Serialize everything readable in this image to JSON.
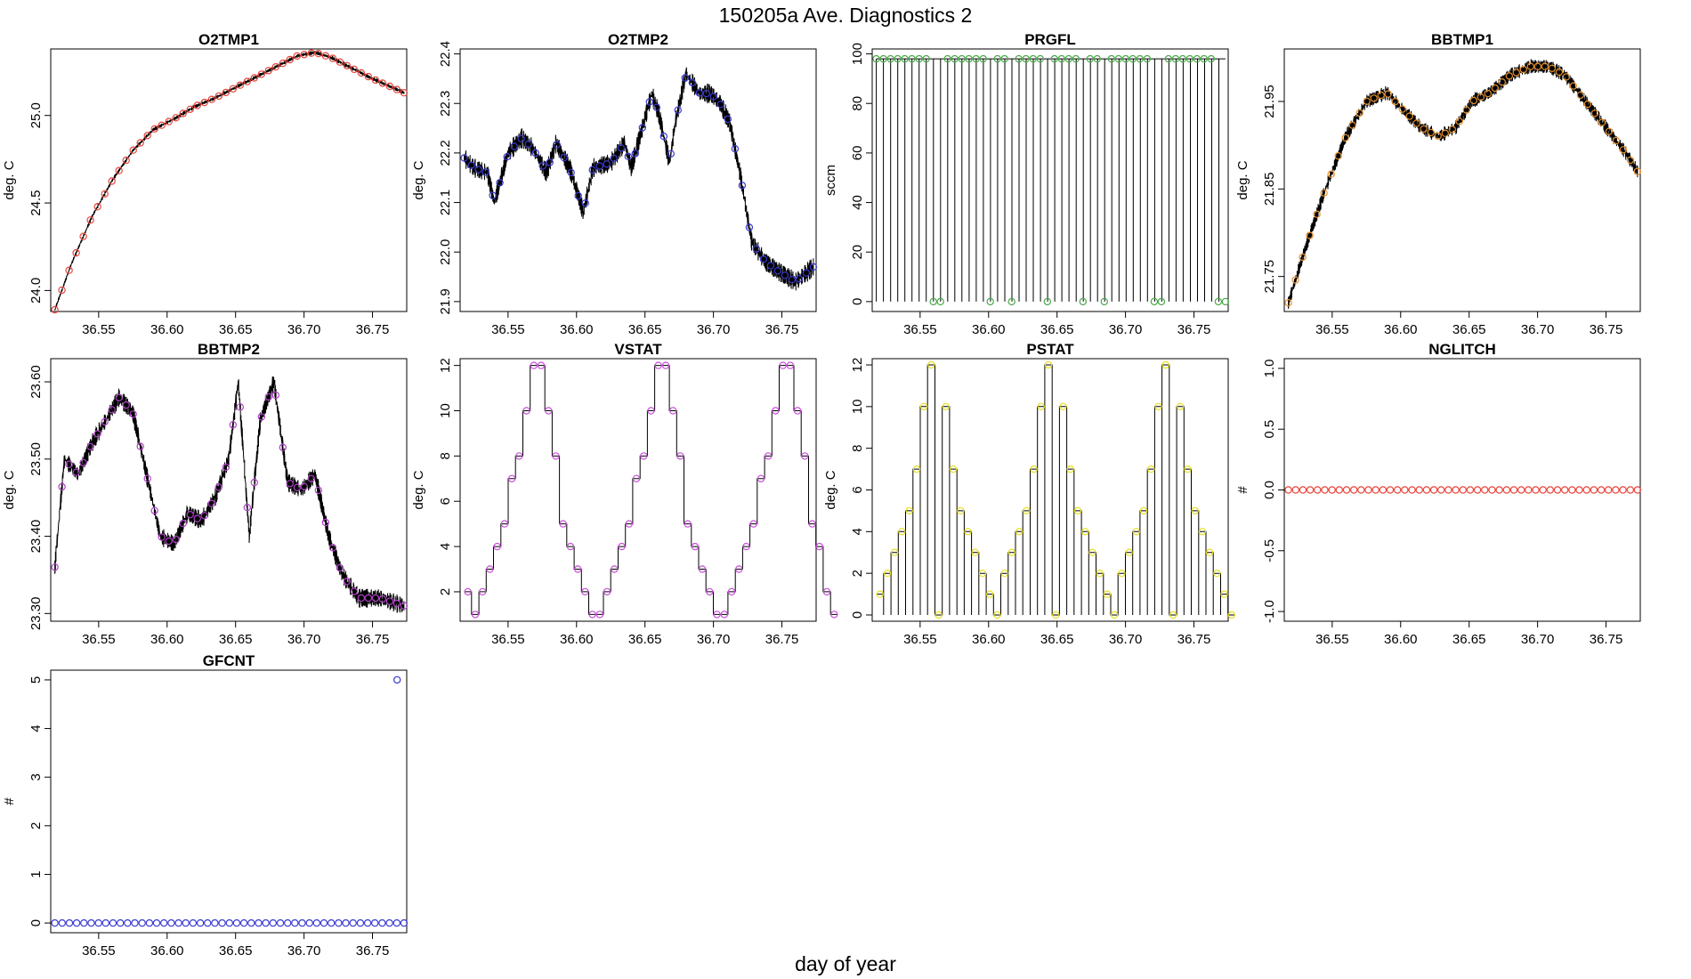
{
  "figure": {
    "title": "150205a   Ave. Diagnostics 2",
    "xlabel": "day of year"
  },
  "chart_data": [
    {
      "type": "line",
      "title": "O2TMP1",
      "ylabel": "deg. C",
      "xlim": [
        36.515,
        36.775
      ],
      "ylim": [
        23.88,
        25.38
      ],
      "xticks": [
        "36.55",
        "36.60",
        "36.65",
        "36.70",
        "36.75"
      ],
      "yticks": [
        "24.0",
        "24.5",
        "25.0"
      ],
      "marker_color": "#e8453c",
      "style": "line",
      "x": [
        36.518,
        36.53,
        36.545,
        36.56,
        36.575,
        36.59,
        36.605,
        36.62,
        36.635,
        36.65,
        36.665,
        36.68,
        36.695,
        36.708,
        36.72,
        36.735,
        36.75,
        36.773
      ],
      "y": [
        23.89,
        24.15,
        24.42,
        24.63,
        24.8,
        24.92,
        24.98,
        25.05,
        25.1,
        25.16,
        25.22,
        25.28,
        25.34,
        25.36,
        25.33,
        25.27,
        25.21,
        25.13
      ],
      "noise": 0.01
    },
    {
      "type": "line",
      "title": "O2TMP2",
      "ylabel": "deg. C",
      "xlim": [
        36.515,
        36.775
      ],
      "ylim": [
        21.88,
        22.41
      ],
      "xticks": [
        "36.55",
        "36.60",
        "36.65",
        "36.70",
        "36.75"
      ],
      "yticks": [
        "21.9",
        "22.0",
        "22.1",
        "22.2",
        "22.3",
        "22.4"
      ],
      "marker_color": "#3a3ad0",
      "style": "line",
      "x": [
        36.518,
        36.525,
        36.535,
        36.54,
        36.55,
        36.56,
        36.568,
        36.578,
        36.585,
        36.595,
        36.605,
        36.612,
        36.625,
        36.635,
        36.64,
        36.65,
        36.655,
        36.66,
        36.668,
        36.672,
        36.68,
        36.69,
        36.698,
        36.705,
        36.712,
        36.72,
        36.728,
        36.738,
        36.748,
        36.76,
        36.773
      ],
      "y": [
        22.19,
        22.17,
        22.16,
        22.1,
        22.2,
        22.23,
        22.21,
        22.16,
        22.22,
        22.17,
        22.08,
        22.17,
        22.18,
        22.22,
        22.17,
        22.27,
        22.32,
        22.28,
        22.18,
        22.26,
        22.36,
        22.32,
        22.32,
        22.3,
        22.26,
        22.15,
        22.02,
        21.98,
        21.96,
        21.94,
        21.97
      ],
      "noise": 0.02
    },
    {
      "type": "line",
      "title": "PRGFL",
      "ylabel": "sccm",
      "xlim": [
        36.515,
        36.775
      ],
      "ylim": [
        -4,
        102
      ],
      "xticks": [
        "36.55",
        "36.60",
        "36.65",
        "36.70",
        "36.75"
      ],
      "yticks": [
        "0",
        "20",
        "40",
        "60",
        "80",
        "100"
      ],
      "marker_color": "#4aa84a",
      "style": "binary",
      "period": 0.0417,
      "x_start": 36.518,
      "x_end": 36.773,
      "high": 98,
      "low": 0,
      "spikes_per_period": 8
    },
    {
      "type": "line",
      "title": "BBTMP1",
      "ylabel": "deg. C",
      "xlim": [
        36.515,
        36.775
      ],
      "ylim": [
        21.71,
        22.01
      ],
      "xticks": [
        "36.55",
        "36.60",
        "36.65",
        "36.70",
        "36.75"
      ],
      "yticks": [
        "21.75",
        "21.85",
        "21.95"
      ],
      "marker_color": "#e8902a",
      "style": "line",
      "x": [
        36.518,
        36.53,
        36.545,
        36.56,
        36.575,
        36.59,
        36.602,
        36.615,
        36.628,
        36.64,
        36.652,
        36.665,
        36.68,
        36.695,
        36.708,
        36.72,
        36.735,
        36.75,
        36.765,
        36.773
      ],
      "y": [
        21.72,
        21.78,
        21.85,
        21.91,
        21.95,
        21.96,
        21.94,
        21.92,
        21.91,
        21.92,
        21.95,
        21.96,
        21.98,
        21.99,
        21.99,
        21.98,
        21.95,
        21.92,
        21.89,
        21.87
      ],
      "noise": 0.008
    },
    {
      "type": "line",
      "title": "BBTMP2",
      "ylabel": "deg. C",
      "xlim": [
        36.515,
        36.775
      ],
      "ylim": [
        23.29,
        23.63
      ],
      "xticks": [
        "36.55",
        "36.60",
        "36.65",
        "36.70",
        "36.75"
      ],
      "yticks": [
        "23.30",
        "23.40",
        "23.50",
        "23.60"
      ],
      "marker_color": "#b040c8",
      "style": "line",
      "x": [
        36.518,
        36.525,
        36.535,
        36.545,
        36.555,
        36.565,
        36.575,
        36.585,
        36.595,
        36.605,
        36.615,
        36.625,
        36.635,
        36.645,
        36.652,
        36.66,
        36.668,
        36.678,
        36.688,
        36.698,
        36.708,
        36.718,
        36.728,
        36.74,
        36.755,
        36.773
      ],
      "y": [
        23.36,
        23.5,
        23.48,
        23.52,
        23.55,
        23.58,
        23.56,
        23.48,
        23.4,
        23.39,
        23.43,
        23.42,
        23.45,
        23.5,
        23.6,
        23.4,
        23.55,
        23.6,
        23.47,
        23.46,
        23.48,
        23.4,
        23.35,
        23.32,
        23.32,
        23.31
      ],
      "noise": 0.012
    },
    {
      "type": "line",
      "title": "VSTAT",
      "ylabel": "deg. C",
      "xlim": [
        36.515,
        36.775
      ],
      "ylim": [
        0.7,
        12.3
      ],
      "xticks": [
        "36.55",
        "36.60",
        "36.65",
        "36.70",
        "36.75"
      ],
      "yticks": [
        "2",
        "4",
        "6",
        "8",
        "10",
        "12"
      ],
      "marker_color": "#c850d8",
      "style": "step",
      "x_start": 36.518,
      "step": 0.00535,
      "values": [
        2,
        1,
        2,
        3,
        4,
        5,
        7,
        8,
        10,
        12,
        12,
        10,
        8,
        5,
        4,
        3,
        2,
        1,
        1,
        2,
        3,
        4,
        5,
        7,
        8,
        10,
        12,
        12,
        10,
        8,
        5,
        4,
        3,
        2,
        1,
        1,
        2,
        3,
        4,
        5,
        7,
        8,
        10,
        12,
        12,
        10,
        8,
        5,
        4,
        2,
        1
      ]
    },
    {
      "type": "line",
      "title": "PSTAT",
      "ylabel": "deg. C",
      "xlim": [
        36.515,
        36.775
      ],
      "ylim": [
        -0.3,
        12.3
      ],
      "xticks": [
        "36.55",
        "36.60",
        "36.65",
        "36.70",
        "36.75"
      ],
      "yticks": [
        "0",
        "2",
        "4",
        "6",
        "8",
        "10",
        "12"
      ],
      "marker_color": "#e8e020",
      "style": "spiky",
      "x_start": 36.518,
      "step": 0.00535,
      "values": [
        1,
        2,
        3,
        4,
        5,
        7,
        10,
        12,
        0,
        10,
        7,
        5,
        4,
        3,
        2,
        1,
        0,
        2,
        3,
        4,
        5,
        7,
        10,
        12,
        0,
        10,
        7,
        5,
        4,
        3,
        2,
        1,
        0,
        2,
        3,
        4,
        5,
        7,
        10,
        12,
        0,
        10,
        7,
        5,
        4,
        3,
        2,
        1,
        0
      ]
    },
    {
      "type": "scatter",
      "title": "NGLITCH",
      "ylabel": "#",
      "xlim": [
        36.515,
        36.775
      ],
      "ylim": [
        -1.08,
        1.08
      ],
      "xticks": [
        "36.55",
        "36.60",
        "36.65",
        "36.70",
        "36.75"
      ],
      "yticks": [
        "-1.0",
        "-0.5",
        "0.0",
        "0.5",
        "1.0"
      ],
      "marker_color": "#e8453c",
      "style": "points",
      "x_start": 36.518,
      "x_end": 36.773,
      "n": 49,
      "constant": 0
    },
    {
      "type": "scatter",
      "title": "GFCNT",
      "ylabel": "#",
      "xlim": [
        36.515,
        36.775
      ],
      "ylim": [
        -0.2,
        5.2
      ],
      "xticks": [
        "36.55",
        "36.60",
        "36.65",
        "36.70",
        "36.75"
      ],
      "yticks": [
        "0",
        "1",
        "2",
        "3",
        "4",
        "5"
      ],
      "marker_color": "#3a3ad0",
      "style": "points",
      "x_start": 36.518,
      "x_end": 36.773,
      "n": 49,
      "constant": 0,
      "outlier": {
        "x": 36.768,
        "y": 5
      }
    }
  ]
}
